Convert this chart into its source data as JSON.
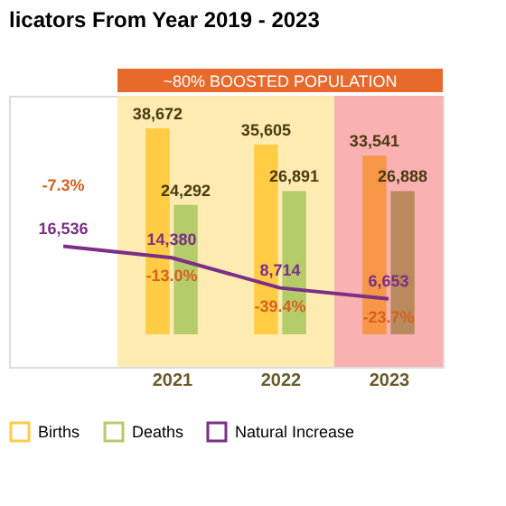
{
  "chart_data": {
    "type": "bar",
    "title": "licators From Year 2019 - 2023",
    "categories": [
      null,
      "2021",
      "2022",
      "2023"
    ],
    "series": [
      {
        "name": "Births",
        "color": "#ffcc44",
        "colors": [
          "#ffcc44",
          "#ffcc44",
          "#ffcc44",
          "#f79646"
        ],
        "values": [
          null,
          38672,
          35605,
          33541
        ],
        "value_labels": [
          null,
          "38,672",
          "35,605",
          "33,541"
        ]
      },
      {
        "name": "Deaths",
        "color": "#b5cc6a",
        "colors": [
          "#b5cc6a",
          "#b5cc6a",
          "#b5cc6a",
          "#b98a5e"
        ],
        "values": [
          null,
          24292,
          26891,
          26888
        ],
        "value_labels": [
          null,
          "24,292",
          "26,891",
          "26,888"
        ]
      },
      {
        "name": "Natural Increase",
        "type": "line",
        "color": "#7b2f86",
        "values": [
          16536,
          14380,
          8714,
          6653
        ],
        "value_labels": [
          "16,536",
          "14,380",
          "8,714",
          "6,653"
        ]
      }
    ],
    "legend": "bottom",
    "tick_labels": "x",
    "bands": [
      {
        "axis": "x",
        "from": "2021",
        "to": "2022",
        "color": "#fde9a9"
      },
      {
        "axis": "x",
        "from": "2023",
        "to": "2023",
        "color": "#f9a8a8"
      }
    ],
    "annotations": [
      "~80% BOOSTED POPULATION",
      "-7.3%",
      {
        "text": "-13.0%",
        "x": "2021",
        "y": 14380
      },
      {
        "text": "-39.4%",
        "x": "2022",
        "y": 8714
      },
      {
        "text": "-23.7%",
        "x": "2023",
        "y": 6653
      }
    ]
  }
}
